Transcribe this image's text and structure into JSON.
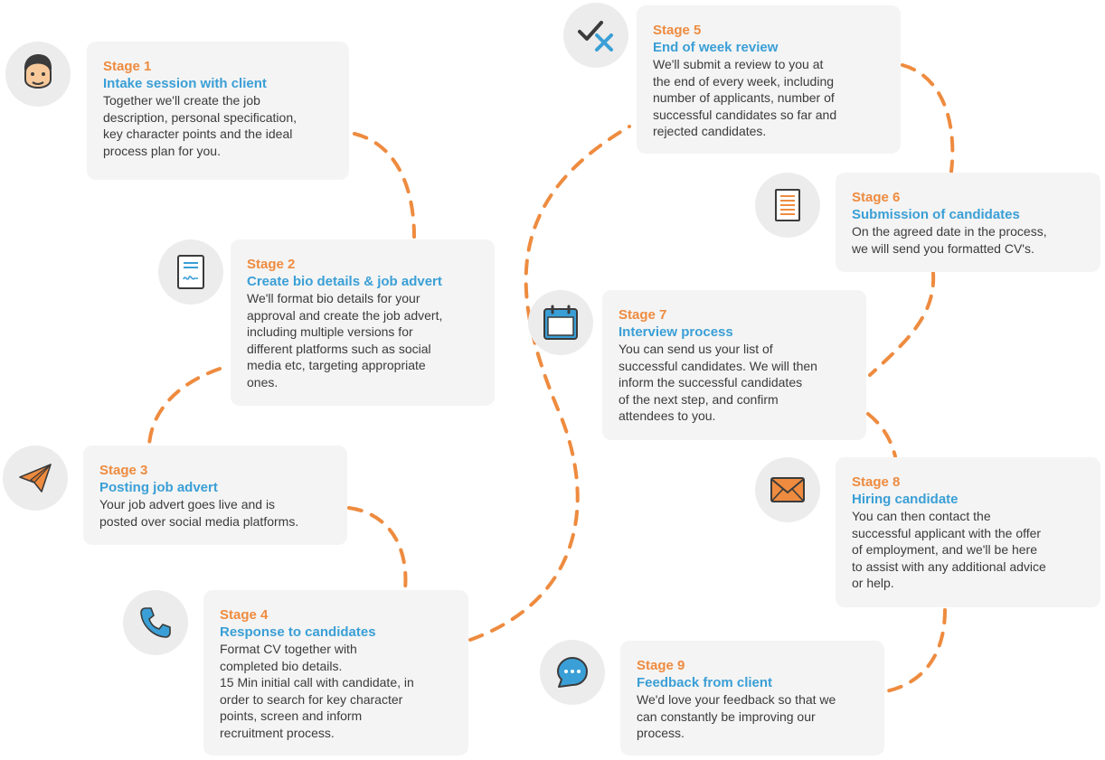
{
  "colors": {
    "accent_orange": "#ee8b3f",
    "accent_blue": "#3a9fd6",
    "card_bg": "#f4f4f4",
    "icon_bg": "#ececec",
    "text": "#3b3b3b"
  },
  "stages": [
    {
      "number": "Stage 1",
      "title": "Intake session with client",
      "description": "Together we'll create the job\ndescription, personal specification,\nkey character points and the ideal\nprocess plan for you.",
      "icon": "person-face-icon"
    },
    {
      "number": "Stage 2",
      "title": "Create bio details & job advert",
      "description": "We'll format bio details for your\napproval and create the job advert,\nincluding multiple versions for\ndifferent platforms such as social\nmedia etc, targeting appropriate\nones.",
      "icon": "signed-document-icon"
    },
    {
      "number": "Stage 3",
      "title": "Posting job advert",
      "description": "Your job advert goes live and is\nposted over social media platforms.",
      "icon": "paper-plane-icon"
    },
    {
      "number": "Stage 4",
      "title": "Response to candidates",
      "description": "Format CV together with\ncompleted bio details.\n15 Min initial call with candidate, in\norder to search for key character\npoints, screen and inform\nrecruitment process.",
      "icon": "phone-icon"
    },
    {
      "number": "Stage 5",
      "title": "End of week review",
      "description": "We'll submit a review to you at\nthe end of every week, including\nnumber of applicants, number of\nsuccessful candidates so far and\nrejected candidates.",
      "icon": "check-cross-icon"
    },
    {
      "number": "Stage 6",
      "title": "Submission of candidates",
      "description": "On the agreed date in the process,\nwe will send you formatted CV's.",
      "icon": "document-list-icon"
    },
    {
      "number": "Stage 7",
      "title": "Interview process",
      "description": "You can send us your list of\nsuccessful candidates. We will then\ninform the successful candidates\nof the next step, and confirm\nattendees to you.",
      "icon": "calendar-icon"
    },
    {
      "number": "Stage 8",
      "title": "Hiring candidate",
      "description": "You can then contact the\nsuccessful applicant with the offer\nof employment, and we'll be here\nto assist with any additional advice\nor help.",
      "icon": "envelope-icon"
    },
    {
      "number": "Stage 9",
      "title": "Feedback from client",
      "description": "We'd love your feedback so that we\ncan constantly be improving our\nprocess.",
      "icon": "chat-bubble-icon"
    }
  ]
}
